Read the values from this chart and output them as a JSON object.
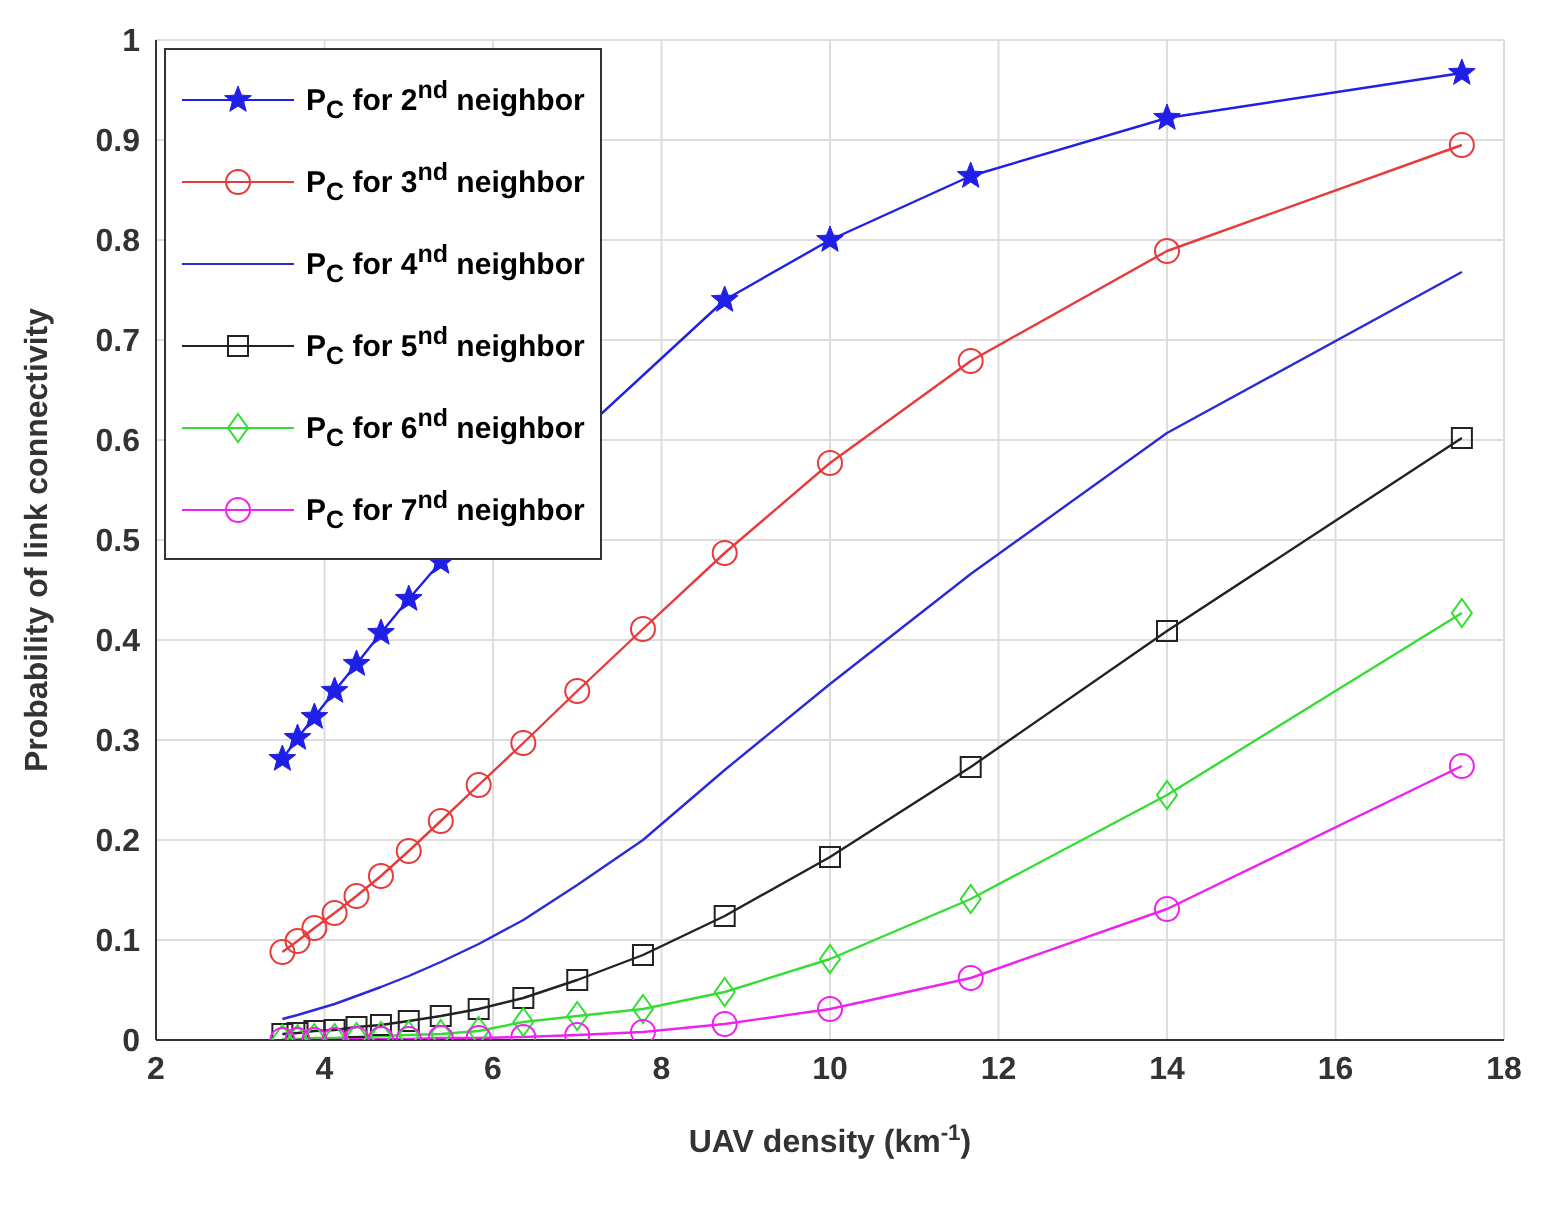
{
  "chart_data": {
    "type": "line",
    "xlabel": "UAV density (km$^{-1}$)",
    "ylabel": "Probability of link connectivity",
    "x": [
      3.5,
      3.68,
      3.88,
      4.12,
      4.38,
      4.67,
      5,
      5.38,
      5.83,
      6.36,
      7,
      7.78,
      8.75,
      10,
      11.67,
      14,
      17.5
    ],
    "xlim": [
      2,
      18
    ],
    "xticks": [
      2,
      4,
      6,
      8,
      10,
      12,
      14,
      16,
      18
    ],
    "ylim": [
      0,
      1
    ],
    "yticks": [
      0,
      0.1,
      0.2,
      0.3,
      0.4,
      0.5,
      0.6,
      0.7,
      0.8,
      0.9,
      1
    ],
    "grid": true,
    "legend": "top left",
    "line_style": "solid",
    "series": [
      {
        "name": "P$_{C}$ for 2$^{nd}$ neighbor",
        "color": "#1f1fe8",
        "marker": "star",
        "values": [
          0.281,
          0.302,
          0.323,
          0.349,
          0.376,
          0.407,
          0.441,
          0.478,
          null,
          null,
          null,
          null,
          0.74,
          0.8,
          0.864,
          0.922,
          0.967
        ]
      },
      {
        "name": "P$_{C}$ for 3$^{nd}$ neighbor",
        "color": "#e83a3a",
        "marker": "circle",
        "values": [
          0.088,
          0.099,
          0.112,
          0.127,
          0.144,
          0.164,
          0.189,
          0.219,
          0.255,
          0.297,
          0.349,
          0.411,
          0.487,
          0.577,
          0.679,
          0.789,
          0.895
        ]
      },
      {
        "name": "P$_{C}$ for 4$^{nd}$ neighbor",
        "color": "#2a2ad8",
        "marker": "none",
        "values": [
          0.021,
          0.025,
          0.03,
          0.036,
          0.044,
          0.053,
          0.064,
          0.078,
          0.096,
          0.12,
          0.155,
          0.2,
          0.27,
          0.356,
          0.466,
          0.607,
          0.768
        ]
      },
      {
        "name": "P$_{C}$ for 5$^{nd}$ neighbor",
        "color": "#222222",
        "marker": "square",
        "values": [
          0.006,
          0.007,
          0.009,
          0.01,
          0.013,
          0.015,
          0.019,
          0.024,
          0.031,
          0.042,
          0.06,
          0.085,
          0.124,
          0.183,
          0.273,
          0.409,
          0.602
        ]
      },
      {
        "name": "P$_{C}$ for 6$^{nd}$ neighbor",
        "color": "#33dd33",
        "marker": "diamond",
        "values": [
          0.001,
          0.001,
          0.002,
          0.002,
          0.003,
          0.004,
          0.005,
          0.006,
          0.009,
          0.018,
          0.024,
          0.031,
          0.048,
          0.081,
          0.141,
          0.245,
          0.427
        ]
      },
      {
        "name": "P$_{C}$ for 7$^{nd}$ neighbor",
        "color": "#ee22ee",
        "marker": "circle",
        "values": [
          0,
          0,
          0,
          0,
          0.001,
          0.001,
          0.001,
          0.002,
          0.002,
          0.003,
          0.005,
          0.008,
          0.016,
          0.031,
          0.062,
          0.131,
          0.274
        ]
      }
    ]
  }
}
